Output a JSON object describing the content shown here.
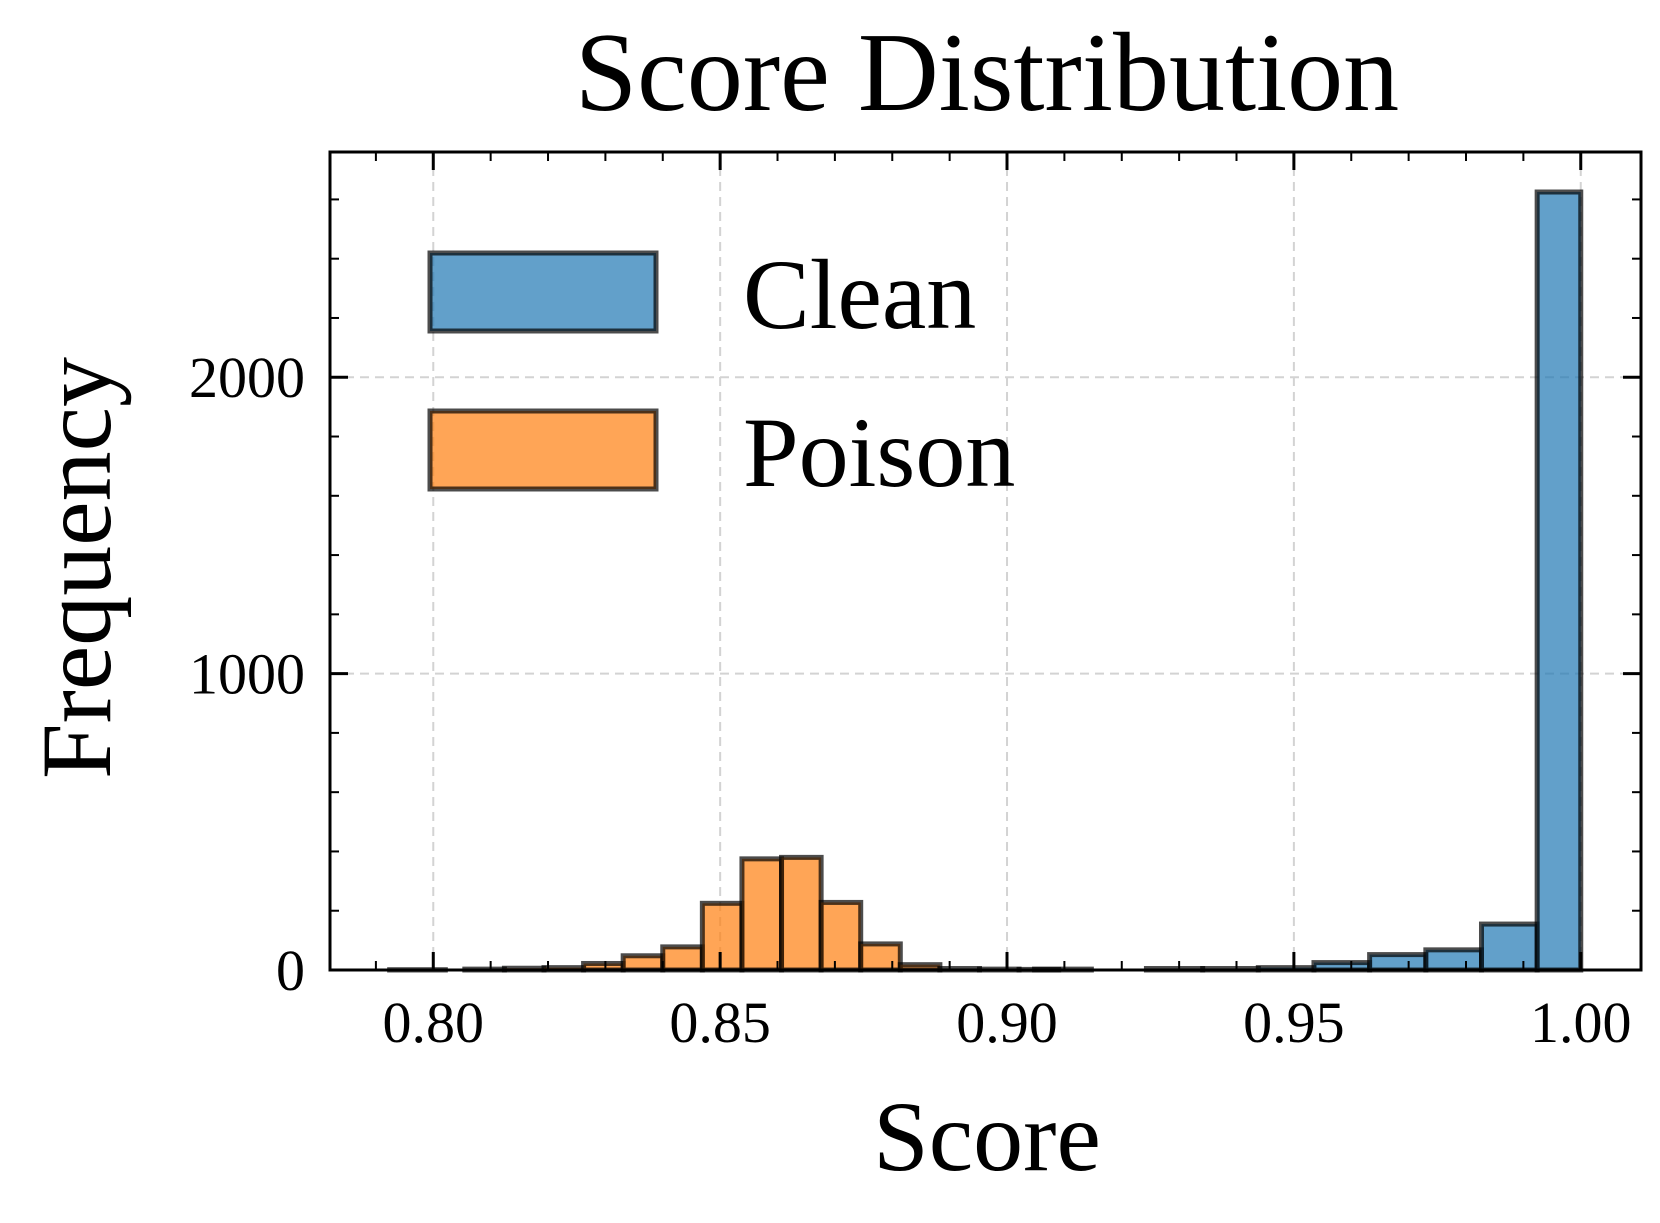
{
  "chart_data": {
    "type": "bar",
    "title": "Score Distribution",
    "xlabel": "Score",
    "ylabel": "Frequency",
    "xlim": [
      0.782,
      1.0105
    ],
    "ylim": [
      0,
      2760
    ],
    "xticks": [
      0.8,
      0.85,
      0.9,
      0.95,
      1.0
    ],
    "xtick_labels": [
      "0.80",
      "0.85",
      "0.90",
      "0.95",
      "1.00"
    ],
    "yticks": [
      0,
      1000,
      2000
    ],
    "ytick_labels": [
      "0",
      "1000",
      "2000"
    ],
    "grid": true,
    "legend_position": "upper-left",
    "series": [
      {
        "name": "Clean",
        "color": "#1f77b4",
        "bins": [
          {
            "x0": 0.7924,
            "x1": 0.8021,
            "count": 1
          },
          {
            "x0": 0.9048,
            "x1": 0.9147,
            "count": 3
          },
          {
            "x0": 0.9243,
            "x1": 0.9341,
            "count": 5
          },
          {
            "x0": 0.9341,
            "x1": 0.9438,
            "count": 5
          },
          {
            "x0": 0.9438,
            "x1": 0.9535,
            "count": 8
          },
          {
            "x0": 0.9535,
            "x1": 0.9632,
            "count": 25
          },
          {
            "x0": 0.9632,
            "x1": 0.973,
            "count": 52
          },
          {
            "x0": 0.973,
            "x1": 0.9827,
            "count": 68
          },
          {
            "x0": 0.9827,
            "x1": 0.9924,
            "count": 155
          },
          {
            "x0": 0.9924,
            "x1": 1.0,
            "count": 2625
          }
        ]
      },
      {
        "name": "Poison",
        "color": "#ff7f0e",
        "bins": [
          {
            "x0": 0.8055,
            "x1": 0.8124,
            "count": 3
          },
          {
            "x0": 0.8124,
            "x1": 0.8193,
            "count": 6
          },
          {
            "x0": 0.8193,
            "x1": 0.8262,
            "count": 8
          },
          {
            "x0": 0.8262,
            "x1": 0.8331,
            "count": 22
          },
          {
            "x0": 0.8331,
            "x1": 0.84,
            "count": 48
          },
          {
            "x0": 0.84,
            "x1": 0.8469,
            "count": 78
          },
          {
            "x0": 0.8469,
            "x1": 0.8538,
            "count": 225
          },
          {
            "x0": 0.8538,
            "x1": 0.8607,
            "count": 375
          },
          {
            "x0": 0.8607,
            "x1": 0.8676,
            "count": 380
          },
          {
            "x0": 0.8676,
            "x1": 0.8745,
            "count": 228
          },
          {
            "x0": 0.8745,
            "x1": 0.8814,
            "count": 88
          },
          {
            "x0": 0.8814,
            "x1": 0.8883,
            "count": 18
          },
          {
            "x0": 0.8883,
            "x1": 0.8952,
            "count": 5
          },
          {
            "x0": 0.8952,
            "x1": 0.9021,
            "count": 3
          },
          {
            "x0": 0.9021,
            "x1": 0.909,
            "count": 2
          }
        ]
      }
    ]
  }
}
